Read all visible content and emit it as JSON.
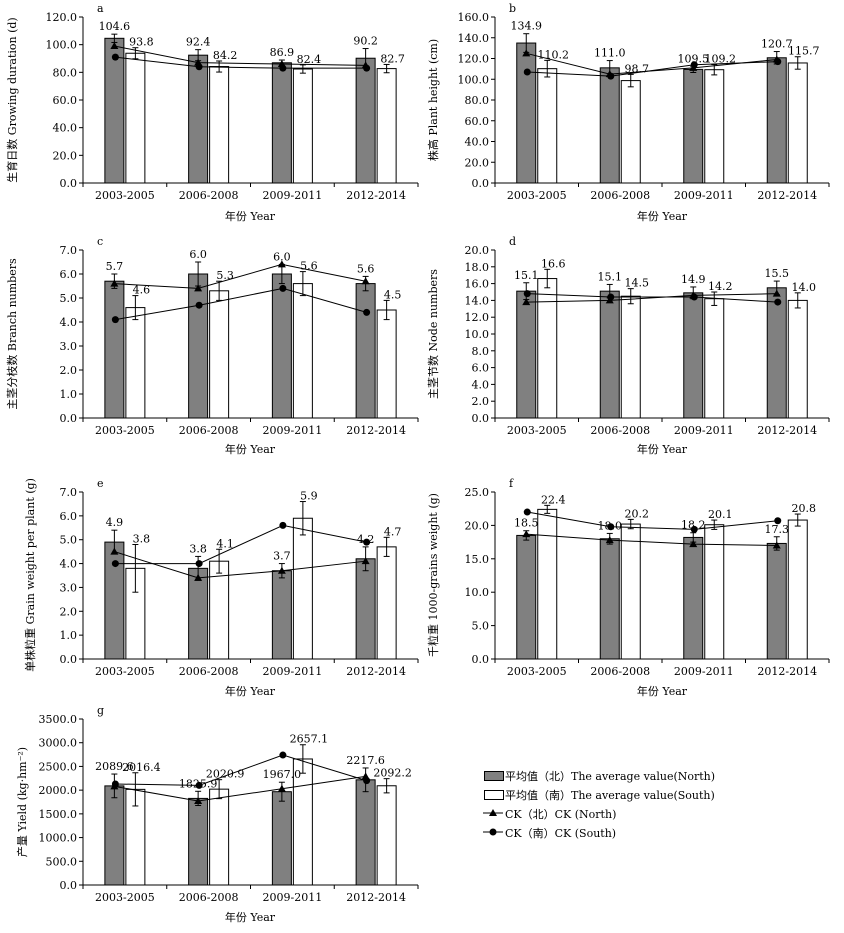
{
  "panels": [
    {
      "letter": "a",
      "ylabel": "生育日数 Growing duration (d)",
      "xlabel": "年份 Year",
      "categories": [
        "2003-2005",
        "2006-2008",
        "2009-2011",
        "2012-2014"
      ],
      "ylim": [
        0,
        120
      ],
      "ytick_step": 20,
      "ytick_decimals": 1,
      "yticks": [
        "0.0",
        "20.0",
        "40.0",
        "60.0",
        "80.0",
        "100.0",
        "120.0"
      ],
      "north_avg": [
        104.6,
        92.4,
        86.9,
        90.2
      ],
      "south_avg": [
        93.8,
        84.2,
        82.4,
        82.7
      ],
      "north_avg_labels": [
        "104.6",
        "92.4",
        "86.9",
        "90.2"
      ],
      "south_avg_labels": [
        "93.8",
        "84.2",
        "82.4",
        "82.7"
      ],
      "north_err": [
        3,
        4,
        2,
        7
      ],
      "south_err": [
        4,
        4,
        3,
        3
      ],
      "ck_north": [
        99,
        87,
        86,
        85
      ],
      "ck_south": [
        91,
        84,
        83,
        83
      ]
    },
    {
      "letter": "b",
      "ylabel": "株高 Plant height (cm)",
      "xlabel": "年份 Year",
      "categories": [
        "2003-2005",
        "2006-2008",
        "2009-2011",
        "2012-2014"
      ],
      "ylim": [
        0,
        160
      ],
      "ytick_step": 20,
      "ytick_decimals": 1,
      "yticks": [
        "0.0",
        "20.0",
        "40.0",
        "60.0",
        "80.0",
        "100.0",
        "120.0",
        "140.0",
        "160.0"
      ],
      "north_avg": [
        134.9,
        111.0,
        109.5,
        120.7
      ],
      "south_avg": [
        110.2,
        98.7,
        109.2,
        115.7
      ],
      "north_avg_labels": [
        "134.9",
        "111.0",
        "109.5",
        "120.7"
      ],
      "south_avg_labels": [
        "110.2",
        "98.7",
        "109.2",
        "115.7"
      ],
      "north_err": [
        9,
        7,
        3,
        6
      ],
      "south_err": [
        8,
        6,
        5,
        6
      ],
      "ck_north": [
        125,
        105,
        111,
        119
      ],
      "ck_south": [
        107,
        103,
        114,
        117
      ]
    },
    {
      "letter": "c",
      "ylabel": "主茎分枝数 Branch numbers",
      "xlabel": "年份 Year",
      "categories": [
        "2003-2005",
        "2006-2008",
        "2009-2011",
        "2012-2014"
      ],
      "ylim": [
        0,
        7
      ],
      "ytick_step": 1,
      "ytick_decimals": 1,
      "yticks": [
        "0.0",
        "1.0",
        "2.0",
        "3.0",
        "4.0",
        "5.0",
        "6.0",
        "7.0"
      ],
      "north_avg": [
        5.7,
        6.0,
        6.0,
        5.6
      ],
      "south_avg": [
        4.6,
        5.3,
        5.6,
        4.5
      ],
      "north_avg_labels": [
        "5.7",
        "6.0",
        "6.0",
        "5.6"
      ],
      "south_avg_labels": [
        "4.6",
        "5.3",
        "5.6",
        "4.5"
      ],
      "north_err": [
        0.3,
        0.5,
        0.4,
        0.3
      ],
      "south_err": [
        0.5,
        0.4,
        0.5,
        0.4
      ],
      "ck_north": [
        5.6,
        5.4,
        6.4,
        5.7
      ],
      "ck_south": [
        4.1,
        4.7,
        5.4,
        4.4
      ]
    },
    {
      "letter": "d",
      "ylabel": "主茎节数 Node numbers",
      "xlabel": "年份 Year",
      "categories": [
        "2003-2005",
        "2006-2008",
        "2009-2011",
        "2012-2014"
      ],
      "ylim": [
        0,
        20
      ],
      "ytick_step": 2,
      "ytick_decimals": 1,
      "yticks": [
        "0.0",
        "2.0",
        "4.0",
        "6.0",
        "8.0",
        "10.0",
        "12.0",
        "14.0",
        "16.0",
        "18.0",
        "20.0"
      ],
      "north_avg": [
        15.1,
        15.1,
        14.9,
        15.5
      ],
      "south_avg": [
        16.6,
        14.5,
        14.2,
        14.0
      ],
      "north_avg_labels": [
        "15.1",
        "15.1",
        "14.9",
        "15.5"
      ],
      "south_avg_labels": [
        "16.6",
        "14.5",
        "14.2",
        "14.0"
      ],
      "north_err": [
        1.0,
        0.8,
        0.7,
        0.8
      ],
      "south_err": [
        1.1,
        0.9,
        0.8,
        0.9
      ],
      "ck_north": [
        13.8,
        14.0,
        14.6,
        14.8
      ],
      "ck_south": [
        14.8,
        14.4,
        14.4,
        13.8
      ]
    },
    {
      "letter": "e",
      "ylabel": "单株粒重 Grain weight per plant (g)",
      "xlabel": "年份 Year",
      "categories": [
        "2003-2005",
        "2006-2008",
        "2009-2011",
        "2012-2014"
      ],
      "ylim": [
        0,
        7
      ],
      "ytick_step": 1,
      "ytick_decimals": 1,
      "yticks": [
        "0.0",
        "1.0",
        "2.0",
        "3.0",
        "4.0",
        "5.0",
        "6.0",
        "7.0"
      ],
      "north_avg": [
        4.9,
        3.8,
        3.7,
        4.2
      ],
      "south_avg": [
        3.8,
        4.1,
        5.9,
        4.7
      ],
      "north_avg_labels": [
        "4.9",
        "3.8",
        "3.7",
        "4.2"
      ],
      "south_avg_labels": [
        "3.8",
        "4.1",
        "5.9",
        "4.7"
      ],
      "north_err": [
        0.5,
        0.5,
        0.3,
        0.5
      ],
      "south_err": [
        1.0,
        0.5,
        0.7,
        0.4
      ],
      "ck_north": [
        4.5,
        3.4,
        3.7,
        4.1
      ],
      "ck_south": [
        4.0,
        4.0,
        5.6,
        4.9
      ]
    },
    {
      "letter": "f",
      "ylabel": "千粒重 1000-grains weight (g)",
      "xlabel": "年份 Year",
      "categories": [
        "2003-2005",
        "2006-2008",
        "2009-2011",
        "2012-2014"
      ],
      "ylim": [
        0,
        25
      ],
      "ytick_step": 5,
      "ytick_decimals": 1,
      "yticks": [
        "0.0",
        "5.0",
        "10.0",
        "15.0",
        "20.0",
        "25.0"
      ],
      "north_avg": [
        18.5,
        18.0,
        18.2,
        17.3
      ],
      "south_avg": [
        22.4,
        20.2,
        20.1,
        20.8
      ],
      "north_avg_labels": [
        "18.5",
        "18.0",
        "18.2",
        "17.3"
      ],
      "south_avg_labels": [
        "22.4",
        "20.2",
        "20.1",
        "20.8"
      ],
      "north_err": [
        0.7,
        0.8,
        0.7,
        1.0
      ],
      "south_err": [
        0.6,
        0.7,
        0.7,
        0.9
      ],
      "ck_north": [
        18.7,
        17.8,
        17.2,
        17.0
      ],
      "ck_south": [
        22.0,
        19.8,
        19.4,
        20.7
      ]
    },
    {
      "letter": "g",
      "ylabel": "产量 Yield (kg·hm⁻²)",
      "xlabel": "年份 Year",
      "categories": [
        "2003-2005",
        "2006-2008",
        "2009-2011",
        "2012-2014"
      ],
      "ylim": [
        0,
        3500
      ],
      "ytick_step": 500,
      "ytick_decimals": 1,
      "yticks": [
        "0.0",
        "500.0",
        "1000.0",
        "1500.0",
        "2000.0",
        "2500.0",
        "3000.0",
        "3500.0"
      ],
      "north_avg": [
        2089.6,
        1825.9,
        1967.0,
        2217.6
      ],
      "south_avg": [
        2016.4,
        2020.9,
        2657.1,
        2092.2
      ],
      "north_avg_labels": [
        "2089.6",
        "1825.9",
        "1967.0",
        "2217.6"
      ],
      "south_avg_labels": [
        "2016.4",
        "2020.9",
        "2657.1",
        "2092.2"
      ],
      "north_err": [
        250,
        150,
        200,
        250
      ],
      "south_err": [
        350,
        200,
        300,
        150
      ],
      "ck_north": [
        2080,
        1770,
        2030,
        2290
      ],
      "ck_south": [
        2130,
        2100,
        2740,
        2200
      ]
    }
  ],
  "legend": {
    "north_avg": "平均值（北）The average value(North)",
    "south_avg": "平均值（南）The average value(South)",
    "ck_north": "CK（北）CK (North)",
    "ck_south": "CK（南）CK (South)"
  },
  "colors": {
    "north_bar": "#808080",
    "south_bar": "#ffffff",
    "line": "#000000"
  }
}
